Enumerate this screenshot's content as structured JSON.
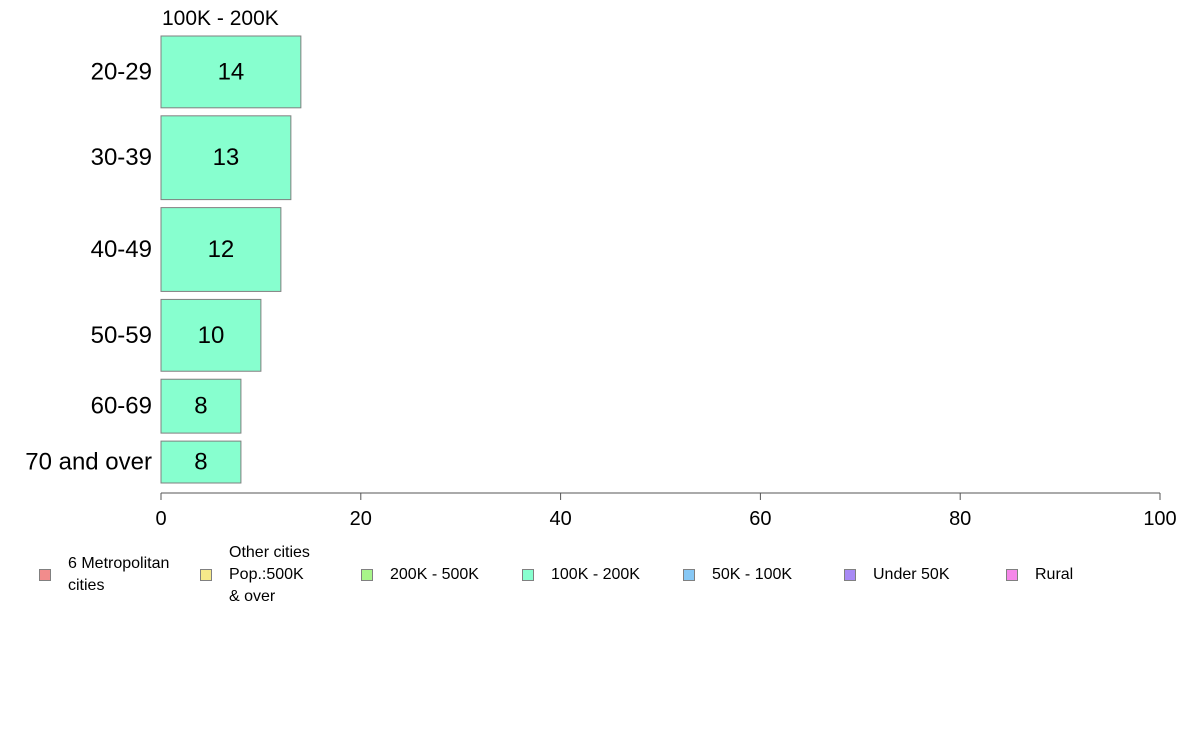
{
  "chart_data": {
    "type": "bar",
    "orientation": "horizontal",
    "panel_title": "100K - 200K",
    "categories": [
      "20-29",
      "30-39",
      "40-49",
      "50-59",
      "60-69",
      "70 and over"
    ],
    "values": [
      14,
      13,
      12,
      10,
      8,
      8
    ],
    "weights": [
      6,
      7,
      7,
      6,
      4.5,
      3.5
    ],
    "bar_color": "#87FFCF",
    "xlim": [
      0,
      100
    ],
    "xticks": [
      0,
      20,
      40,
      60,
      80,
      100
    ],
    "grid": false,
    "legend_position": "bottom",
    "legend": [
      {
        "label": "6 Metropolitan\n cities",
        "color": "#F28C8C"
      },
      {
        "label": "Other cities\nPop.:500K\n & over",
        "color": "#F5E98A"
      },
      {
        "label": "200K - 500K",
        "color": "#A8F58A"
      },
      {
        "label": "100K - 200K",
        "color": "#87FFCF"
      },
      {
        "label": "50K - 100K",
        "color": "#87C8F5"
      },
      {
        "label": "Under 50K",
        "color": "#A88AF5"
      },
      {
        "label": "Rural",
        "color": "#F587E9"
      }
    ]
  }
}
